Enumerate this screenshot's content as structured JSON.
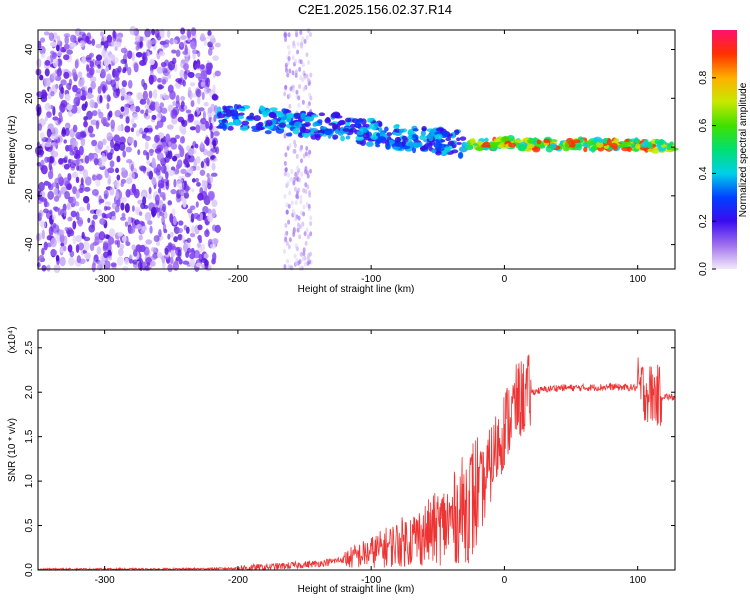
{
  "figure": {
    "title": "C2E1.2025.156.02.37.R14"
  },
  "chart_data": [
    {
      "type": "heatmap",
      "xlabel": "Height of straight line (km)",
      "ylabel": "Frequency (Hz)",
      "xlim": [
        -350,
        128
      ],
      "ylim": [
        -50,
        48
      ],
      "xticks": [
        -300,
        -200,
        -100,
        0,
        100
      ],
      "yticks": [
        -40,
        -20,
        0,
        20,
        40
      ],
      "colorbar": {
        "label": "Normalized spectral amplitude",
        "range": [
          0,
          1
        ],
        "ticks": [
          0.0,
          0.2,
          0.4,
          0.6,
          0.8
        ],
        "tick_labels": [
          "0.0",
          "0.2",
          "0.4",
          "0.6",
          "0.8"
        ],
        "colormap": "rainbow"
      },
      "ridge": {
        "x": [
          -215,
          -200,
          -180,
          -160,
          -140,
          -120,
          -100,
          -80,
          -60,
          -40,
          -30,
          -20,
          -10,
          0,
          20,
          40,
          60,
          80,
          100,
          128
        ],
        "y": [
          12,
          12,
          11,
          10,
          9,
          8,
          6,
          4,
          3,
          2,
          1,
          1,
          1,
          2,
          1,
          1,
          1,
          1,
          1,
          0
        ]
      },
      "noise_region_x": [
        -350,
        -215
      ],
      "noise_band_x": [
        -165,
        -145
      ]
    },
    {
      "type": "line",
      "xlabel": "Height of straight line (km)",
      "ylabel": "SNR (10 * v/v)",
      "yscale_label": "(x10⁴)",
      "xlim": [
        -350,
        128
      ],
      "ylim": [
        0,
        2.7
      ],
      "xticks": [
        -300,
        -200,
        -100,
        0,
        100
      ],
      "yticks": [
        0.0,
        0.5,
        1.0,
        1.5,
        2.0,
        2.5
      ],
      "ytick_labels": [
        "0.0",
        "0.5",
        "1.0",
        "1.5",
        "2.0",
        "2.5"
      ],
      "color": "#ee3333",
      "series": [
        {
          "x": [
            -350,
            -300,
            -250,
            -200,
            -180,
            -160,
            -140,
            -120,
            -100,
            -80,
            -60,
            -40,
            -30,
            -20,
            -15,
            -10,
            0,
            10,
            20,
            30,
            40,
            60,
            80,
            100,
            105,
            110,
            115,
            128
          ],
          "values": [
            0.01,
            0.01,
            0.01,
            0.02,
            0.03,
            0.05,
            0.07,
            0.12,
            0.2,
            0.3,
            0.4,
            0.55,
            0.7,
            0.85,
            0.95,
            1.2,
            1.6,
            1.9,
            2.0,
            2.03,
            2.05,
            2.05,
            2.06,
            2.05,
            2.02,
            1.98,
            1.96,
            1.94
          ]
        }
      ]
    }
  ]
}
